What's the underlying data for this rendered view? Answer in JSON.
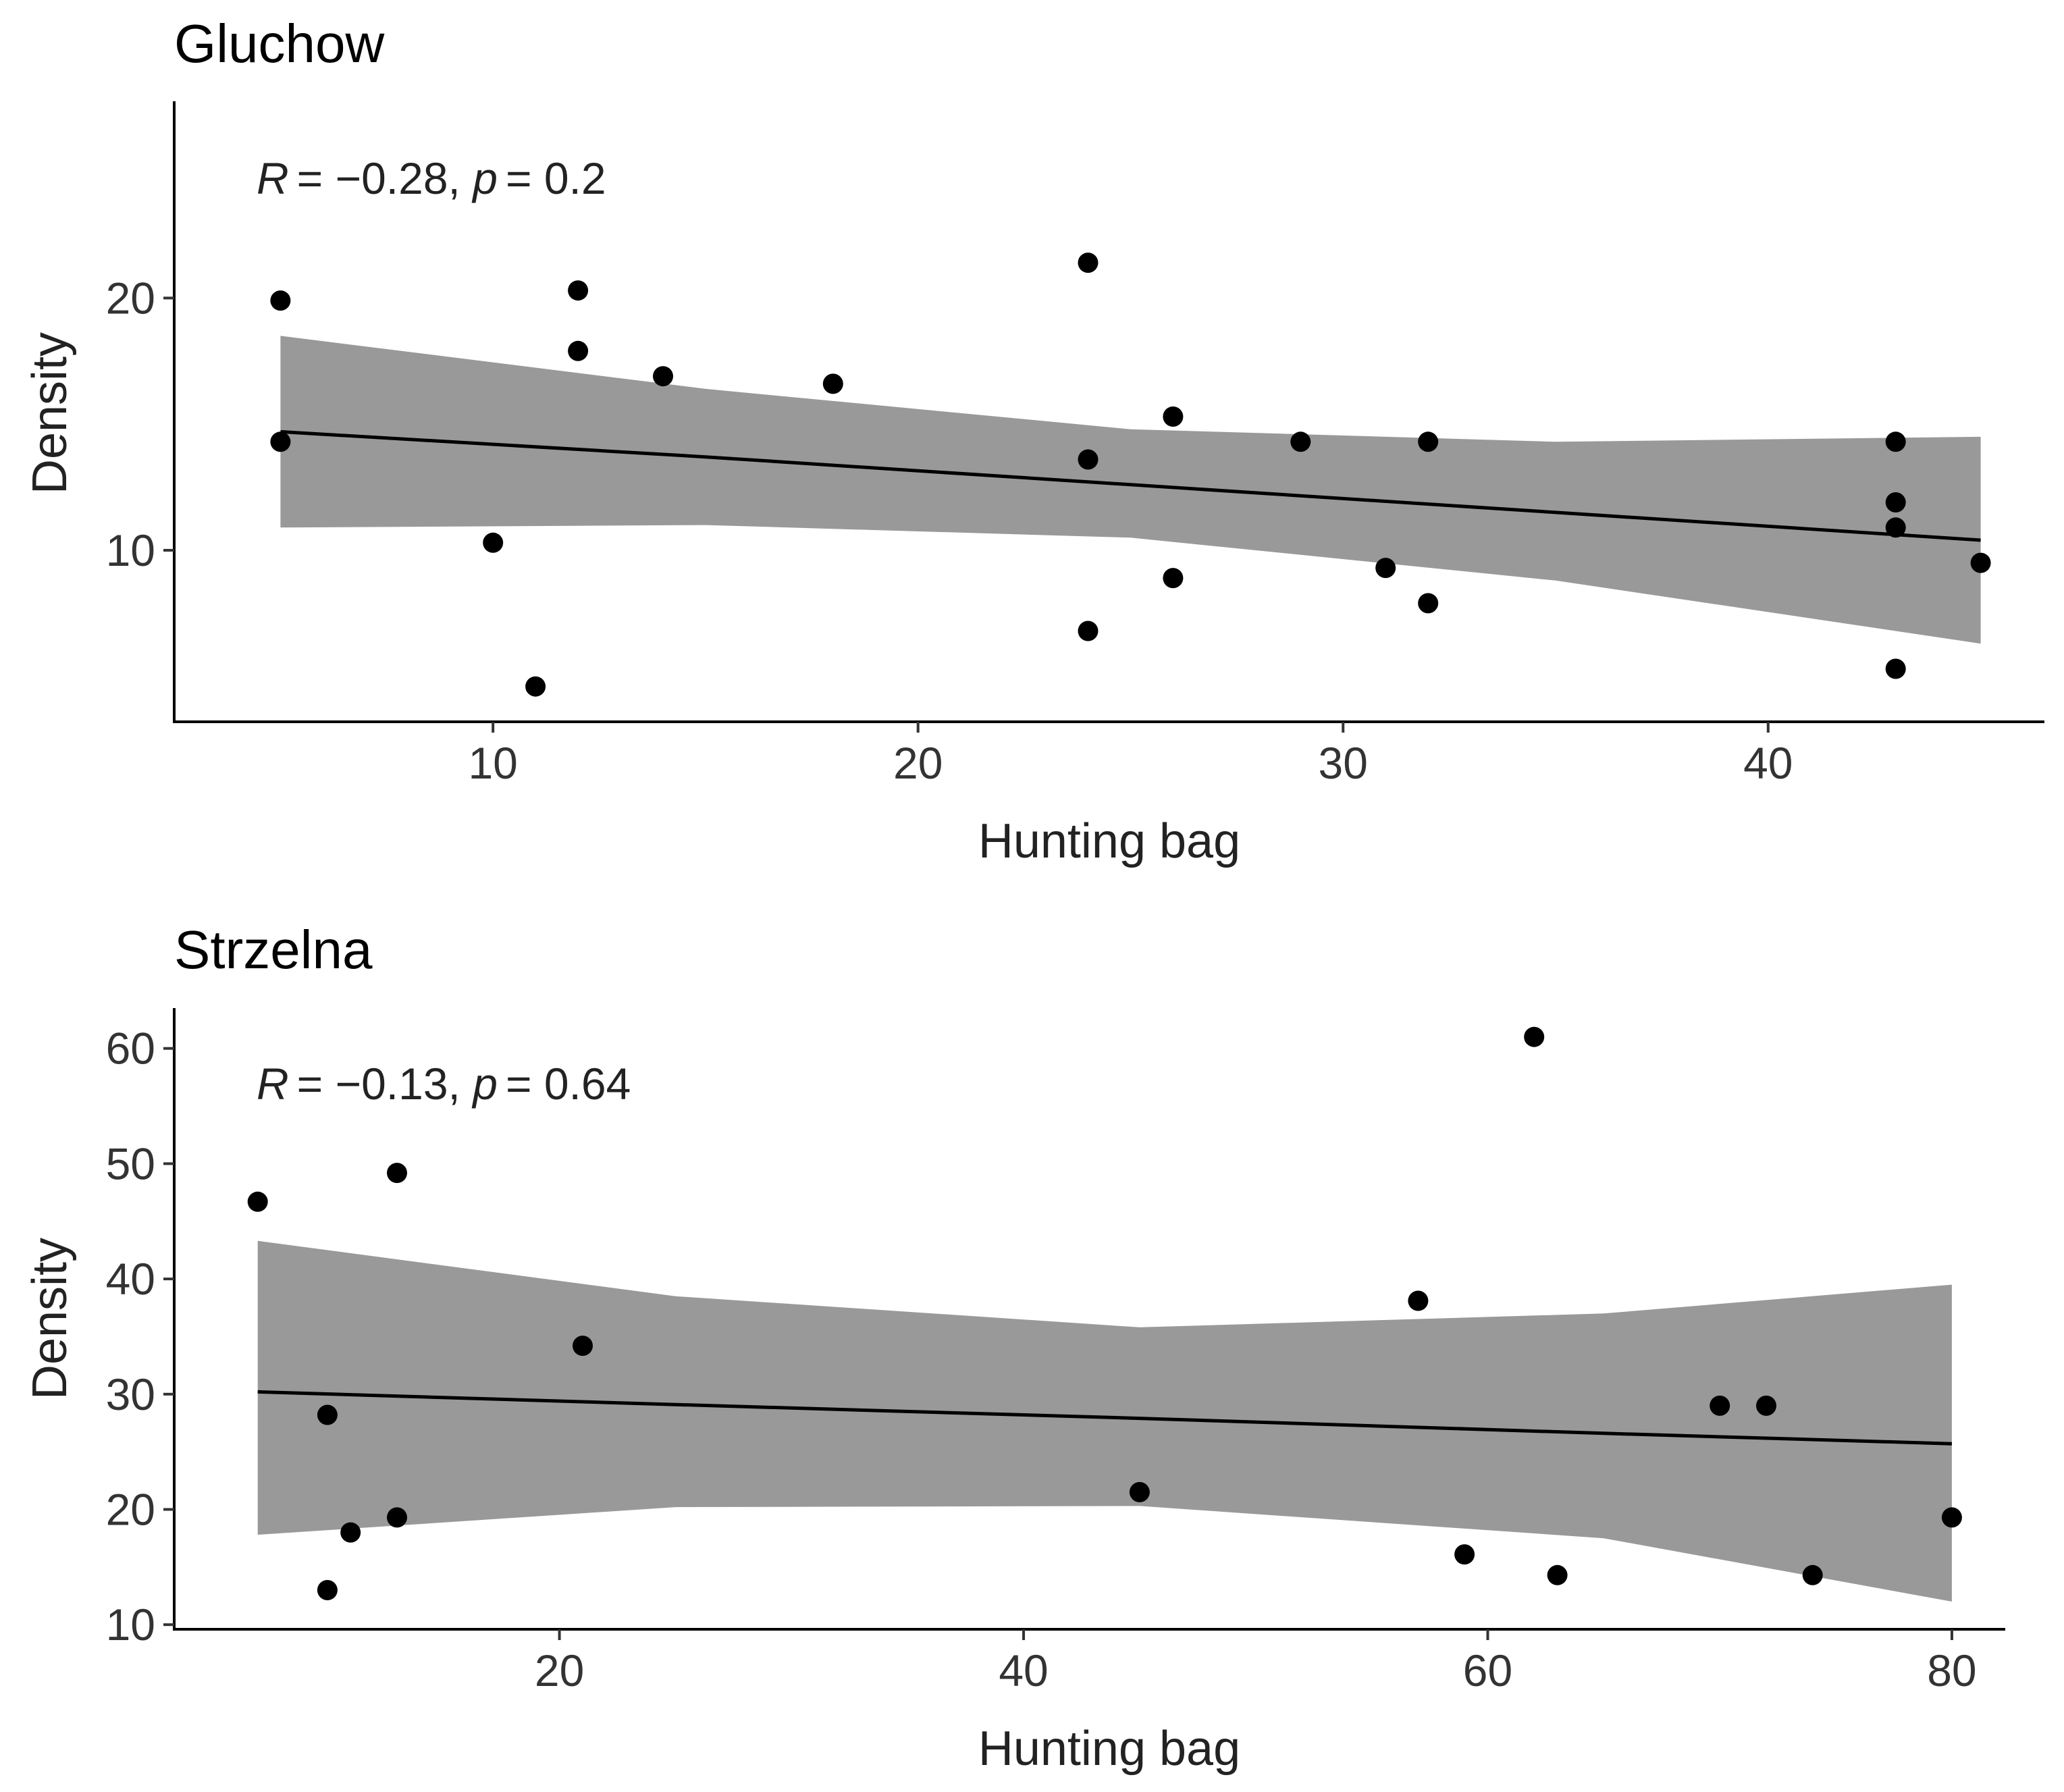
{
  "chart_data": [
    {
      "type": "scatter",
      "title": "Gluchow",
      "xlabel": "Hunting bag",
      "ylabel": "Density",
      "annotation": {
        "r_label": "R",
        "r_value": "= −0.28, ",
        "p_label": "p",
        "p_value": "= 0.2"
      },
      "xlim": [
        2.5,
        46.5
      ],
      "ylim": [
        3.2,
        27.8
      ],
      "xticks": [
        10,
        20,
        30,
        40
      ],
      "yticks": [
        10,
        20
      ],
      "points": [
        {
          "x": 5,
          "y": 19.9
        },
        {
          "x": 5,
          "y": 14.3
        },
        {
          "x": 10,
          "y": 10.3
        },
        {
          "x": 11,
          "y": 4.6
        },
        {
          "x": 12,
          "y": 20.3
        },
        {
          "x": 12,
          "y": 17.9
        },
        {
          "x": 14,
          "y": 16.9
        },
        {
          "x": 18,
          "y": 16.6
        },
        {
          "x": 24,
          "y": 21.4
        },
        {
          "x": 24,
          "y": 13.6
        },
        {
          "x": 24,
          "y": 6.8
        },
        {
          "x": 26,
          "y": 15.3
        },
        {
          "x": 26,
          "y": 8.9
        },
        {
          "x": 29,
          "y": 14.3
        },
        {
          "x": 31,
          "y": 9.3
        },
        {
          "x": 32,
          "y": 14.3
        },
        {
          "x": 32,
          "y": 7.9
        },
        {
          "x": 43,
          "y": 14.3
        },
        {
          "x": 43,
          "y": 11.9
        },
        {
          "x": 43,
          "y": 10.9
        },
        {
          "x": 43,
          "y": 5.3
        },
        {
          "x": 45,
          "y": 9.5
        }
      ],
      "fit": {
        "x": [
          5,
          15,
          25,
          35,
          45
        ],
        "y": [
          14.7,
          13.7,
          12.6,
          11.5,
          10.4
        ],
        "ci_low": [
          10.9,
          11.0,
          10.5,
          8.8,
          6.3
        ],
        "ci_high": [
          18.5,
          16.4,
          14.8,
          14.3,
          14.5
        ]
      }
    },
    {
      "type": "scatter",
      "title": "Strzelna",
      "xlabel": "Hunting bag",
      "ylabel": "Density",
      "annotation": {
        "r_label": "R",
        "r_value": "= −0.13, ",
        "p_label": "p",
        "p_value": "= 0.64"
      },
      "xlim": [
        3.4,
        82.3
      ],
      "ylim": [
        9.6,
        63.5
      ],
      "xticks": [
        20,
        40,
        60,
        80
      ],
      "yticks": [
        10,
        20,
        30,
        40,
        50,
        60
      ],
      "points": [
        {
          "x": 7,
          "y": 46.7
        },
        {
          "x": 10,
          "y": 28.2
        },
        {
          "x": 10,
          "y": 13.0
        },
        {
          "x": 11,
          "y": 18.0
        },
        {
          "x": 13,
          "y": 49.2
        },
        {
          "x": 13,
          "y": 19.3
        },
        {
          "x": 21,
          "y": 34.2
        },
        {
          "x": 45,
          "y": 21.5
        },
        {
          "x": 57,
          "y": 38.1
        },
        {
          "x": 59,
          "y": 16.1
        },
        {
          "x": 62,
          "y": 61.0
        },
        {
          "x": 63,
          "y": 14.3
        },
        {
          "x": 70,
          "y": 29.0
        },
        {
          "x": 72,
          "y": 29.0
        },
        {
          "x": 74,
          "y": 14.3
        },
        {
          "x": 80,
          "y": 19.3
        }
      ],
      "fit": {
        "x": [
          7,
          25,
          45,
          65,
          80
        ],
        "y": [
          30.2,
          29.1,
          27.9,
          26.6,
          25.7
        ],
        "ci_low": [
          17.8,
          20.2,
          20.3,
          17.5,
          12.0
        ],
        "ci_high": [
          43.3,
          38.5,
          35.8,
          37.0,
          39.5
        ]
      }
    }
  ]
}
